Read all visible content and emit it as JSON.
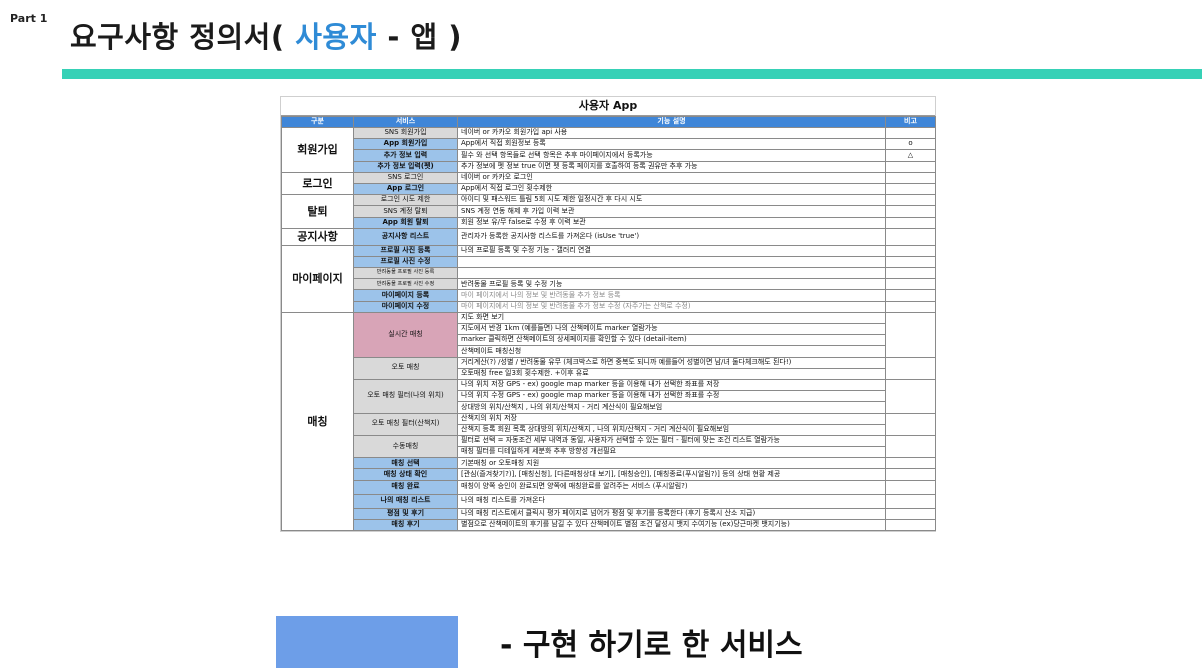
{
  "slide": {
    "part_label": "Part 1",
    "title_prefix": "요구사항 정의서( ",
    "title_accent": "사용자",
    "title_suffix": " - 앱 )",
    "legend_label": "-   구현 하기로 한 서비스",
    "accent_color": "#36d1b6",
    "legend_color": "#6d9ee8"
  },
  "table": {
    "title": "사용자 App",
    "headers": [
      "구분",
      "서비스",
      "기능 설명",
      "비고"
    ],
    "rows": [
      {
        "cat": "회원가입",
        "rowspan": 4,
        "svc": "SNS 회원가입",
        "style": "gray",
        "desc": "네이버 or 카카오 회원가입 api 사용",
        "note": ""
      },
      {
        "svc": "App 회원가입",
        "style": "blue",
        "desc": "App에서 직접 회원정보 등록",
        "note": "o"
      },
      {
        "svc": "추가 정보 입력",
        "style": "blue",
        "desc": "필수 와 선택 항목들로 선택 항목은 추후 마이페이지에서 등록가능",
        "note": "△"
      },
      {
        "svc": "추가 정보 입력(펫)",
        "style": "blue",
        "desc": "추가 정보에 펫 정보 true 이면 펫 등록 페이지를 호출하여 등록 권유만 추후 가능",
        "note": ""
      },
      {
        "cat": "로그인",
        "rowspan": 2,
        "svc": "SNS 로그인",
        "style": "gray",
        "desc": "네이버 or 카카오 로그인",
        "note": ""
      },
      {
        "svc": "App 로그인",
        "style": "blue",
        "desc": "App에서 직접 로그인 횟수제한",
        "note": ""
      },
      {
        "cat": "탈퇴",
        "rowspan": 3,
        "svc": "로그인 시도 제한",
        "style": "gray",
        "desc": "아이디 및 패스워드 틀림 5회 시도 제한 일정시간 후 다시 시도",
        "note": ""
      },
      {
        "svc": "SNS 계정 탈퇴",
        "style": "gray",
        "desc": "SNS 계정 연동 해제 후 가입 이력 보관",
        "note": ""
      },
      {
        "svc": "App 회원 탈퇴",
        "style": "blue",
        "desc": "회원 정보 유/무 false로 수정 후 이력 보관",
        "note": ""
      },
      {
        "cat": "공지사항",
        "rowspan": 1,
        "svc": "공지사항 리스트",
        "style": "blue",
        "desc": "관리자가 등록한 공지사항 리스트를 가져온다 (isUse 'true')",
        "note": "",
        "tall": true
      },
      {
        "cat": "마이페이지",
        "rowspan": 6,
        "svc": "프로필 사진 등록",
        "style": "blue",
        "desc": "나의 프로필 등록 및 수정 기능 - 갤러리 연결",
        "note": ""
      },
      {
        "svc": "프로필 사진 수정",
        "style": "blue",
        "desc": "",
        "note": ""
      },
      {
        "svc": "반려동물 프로필 사진 등록",
        "style": "gray",
        "small": true,
        "desc": "",
        "note": ""
      },
      {
        "svc": "반려동물 프로필 사진 수정",
        "style": "gray",
        "small": true,
        "desc": "반려동물 프로필 등록 및 수정 기능",
        "note": ""
      },
      {
        "svc": "마이페이지 등록",
        "style": "blue",
        "desc": "마이 페이지에서 나의 정보 및 반려동물 추가 정보 등록",
        "note": "",
        "muted": true
      },
      {
        "svc": "마이페이지 수정",
        "style": "blue",
        "desc": "마이 페이지에서 나의 정보 및 반려동물 추가 정보 수정 (자주가는 산책로 수정)",
        "note": "",
        "muted": true
      }
    ],
    "matching": {
      "cat": "매칭",
      "groups": [
        {
          "svc": "실시간 매칭",
          "style": "pink",
          "lines": [
            "지도 화면 보기",
            "지도에서 반경 1km (예를들면) 나의 산책메이트 marker 열람가능",
            "marker 클릭하면 산책메이트의 상세페이지를 확인할 수 있다 (detail-item)",
            "산책메이트 매칭신청"
          ]
        },
        {
          "svc": "오토 매칭",
          "style": "gray",
          "lines": [
            "거리계산(?) /성별 / 반려동물 유무 (체크박스로 하면 중복도 되니까 예를들어 성별이면 남/녀 둘다체크해도 된다!)",
            "오토매칭 free 일3회 횟수제한. +이후 유료"
          ]
        },
        {
          "svc": "오토 매칭 필터(나의 위치)",
          "style": "gray",
          "lines": [
            "나의 위치 저장 GPS - ex) google map marker 등을 이용해 내가 선택한 좌표를 저장",
            "나의 위치 수정 GPS - ex) google map marker 등을 이용해 내가 선택한 좌표를 수정",
            "상대방의 위치/산책지 , 나의 위치/산책지 - 거리 계산식이 필요해보임"
          ]
        },
        {
          "svc": "오토 매칭 필터(산책지)",
          "style": "gray",
          "lines": [
            "산책지의 위치 저장",
            "산책지 등록 회원 목록 상대방의 위치/산책지 , 나의 위치/산책지 - 거리 계산식이 필요해보임"
          ]
        },
        {
          "svc": "수동매칭",
          "style": "gray",
          "lines": [
            "필터로 선택 = 자동조건 세부 내역과 동일, 사용자가 선택할 수 있는 필터 - 필터에 맞는 조건 리스트 열람가능",
            "매칭 필터를 디테일하게 세분화 추후 방향성 개선필요"
          ]
        },
        {
          "svc": "매칭 선택",
          "style": "blue",
          "lines": [
            "기본매칭 or 오토매칭 지원"
          ]
        },
        {
          "svc": "매칭 상태 확인",
          "style": "blue",
          "lines": [
            "[관심(즐겨찾기?)], [매칭신청], [다른매칭상대 보기], [매칭승인], [매칭종료(푸시알림?)] 등의 상태 현황 제공"
          ]
        },
        {
          "svc": "매칭 완료",
          "style": "blue",
          "lines": [
            "매칭이 양쪽 승인이 완료되면 양쪽에 매칭완료를 알려주는 서비스 (푸시알림?)"
          ],
          "tall": true
        },
        {
          "svc": "나의 매칭 리스트",
          "style": "blue",
          "lines": [
            "나의 매칭 리스트를 가져온다"
          ],
          "tall": true
        },
        {
          "svc": "평점 및 후기",
          "style": "blue",
          "lines": [
            "나의 매칭 리스트에서 클릭시 평가 페이지로 넘어가 평점 및 후기를 등록한다 (후기 등록시 산소 지급)"
          ]
        },
        {
          "svc": "매칭 후기",
          "style": "blue",
          "lines": [
            "별점으로 산책메이트의 후기를 남길 수 있다 산책메이트 별점 조건 달성시 뱃지 수여기능 (ex)당근마켓 뱃지기능)"
          ]
        }
      ]
    }
  }
}
